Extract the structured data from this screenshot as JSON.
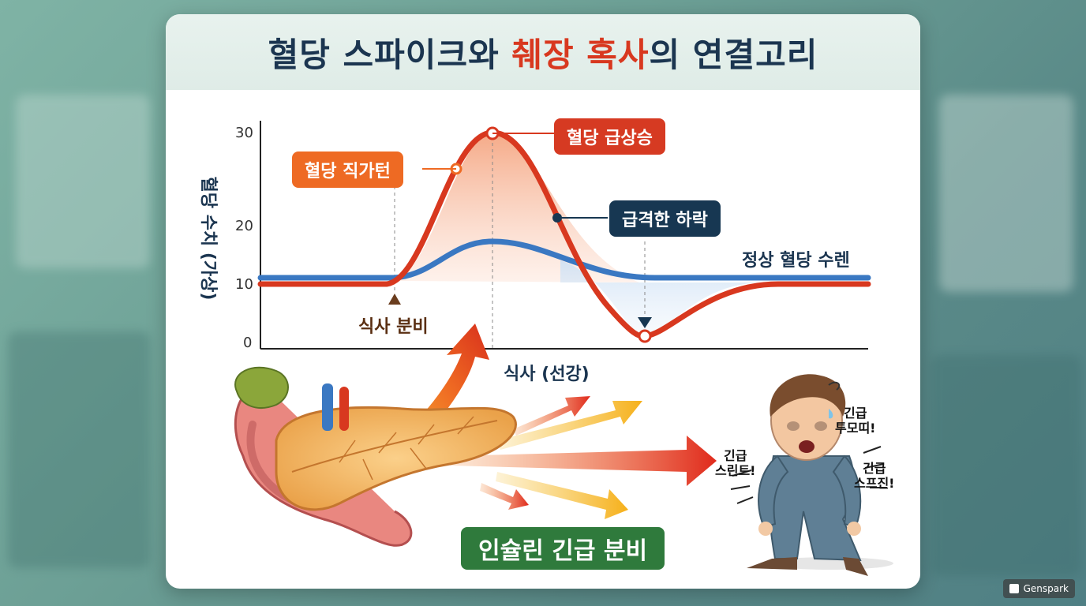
{
  "title": {
    "part1": "혈당 스파이크와 ",
    "highlight": "췌장 혹사",
    "part2": "의 연결고리"
  },
  "chart_data": {
    "type": "line",
    "ylabel": "혈당 수치 (가상)",
    "xlabel": "식사 (선강)",
    "yticks": [
      "30",
      "20",
      "10",
      "0"
    ],
    "ylim": [
      0,
      30
    ],
    "series": [
      {
        "name": "정상 혈당 수렌",
        "color": "#3a78c2"
      },
      {
        "name": "",
        "color": "#d8381f"
      }
    ]
  },
  "annotations": {
    "spike": "혈당 급상승",
    "steep": "혈당 직가턴",
    "drop": "급격한 하락",
    "normal": "정상 혈당 수렌",
    "meal": "식사 분비"
  },
  "insulin_label": "인슐린 긴급 분비",
  "shouts": [
    "긴급\n투모띠!",
    "긴급\n스린트!",
    "긴급\n스프진!"
  ],
  "watermark": "Genspark",
  "colors": {
    "red": "#d63a22",
    "orange": "#ee6a23",
    "navy": "#173752",
    "blue": "#3a78c2",
    "green": "#2f7a3c"
  }
}
